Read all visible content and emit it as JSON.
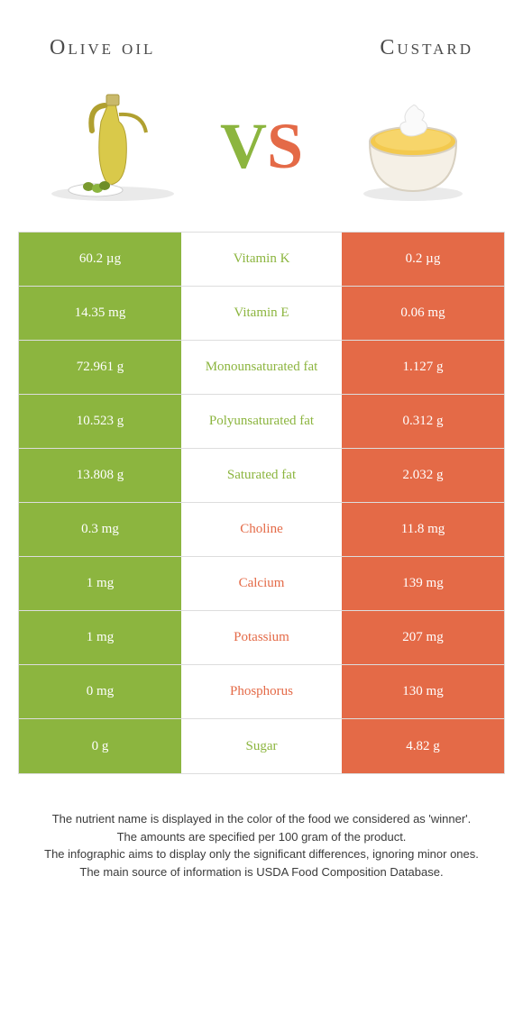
{
  "header": {
    "left": "Olive oil",
    "right": "Custard"
  },
  "vs": {
    "v": "V",
    "s": "S"
  },
  "colors": {
    "green": "#8cb53f",
    "orange": "#e46a47",
    "mid_text_green": "#8cb53f",
    "mid_text_orange": "#e46a47",
    "border": "#dddddd",
    "bg": "#ffffff"
  },
  "rows": [
    {
      "left": "60.2 µg",
      "mid": "Vitamin K",
      "right": "0.2 µg",
      "winner": "left"
    },
    {
      "left": "14.35 mg",
      "mid": "Vitamin E",
      "right": "0.06 mg",
      "winner": "left"
    },
    {
      "left": "72.961 g",
      "mid": "Monounsaturated fat",
      "right": "1.127 g",
      "winner": "left"
    },
    {
      "left": "10.523 g",
      "mid": "Polyunsaturated fat",
      "right": "0.312 g",
      "winner": "left"
    },
    {
      "left": "13.808 g",
      "mid": "Saturated fat",
      "right": "2.032 g",
      "winner": "left"
    },
    {
      "left": "0.3 mg",
      "mid": "Choline",
      "right": "11.8 mg",
      "winner": "right"
    },
    {
      "left": "1 mg",
      "mid": "Calcium",
      "right": "139 mg",
      "winner": "right"
    },
    {
      "left": "1 mg",
      "mid": "Potassium",
      "right": "207 mg",
      "winner": "right"
    },
    {
      "left": "0 mg",
      "mid": "Phosphorus",
      "right": "130 mg",
      "winner": "right"
    },
    {
      "left": "0 g",
      "mid": "Sugar",
      "right": "4.82 g",
      "winner": "left"
    }
  ],
  "footer": [
    "The nutrient name is displayed in the color of the food we considered as 'winner'.",
    "The amounts are specified per 100 gram of the product.",
    "The infographic aims to display only the significant differences, ignoring minor ones.",
    "The main source of information is USDA Food Composition Database."
  ]
}
